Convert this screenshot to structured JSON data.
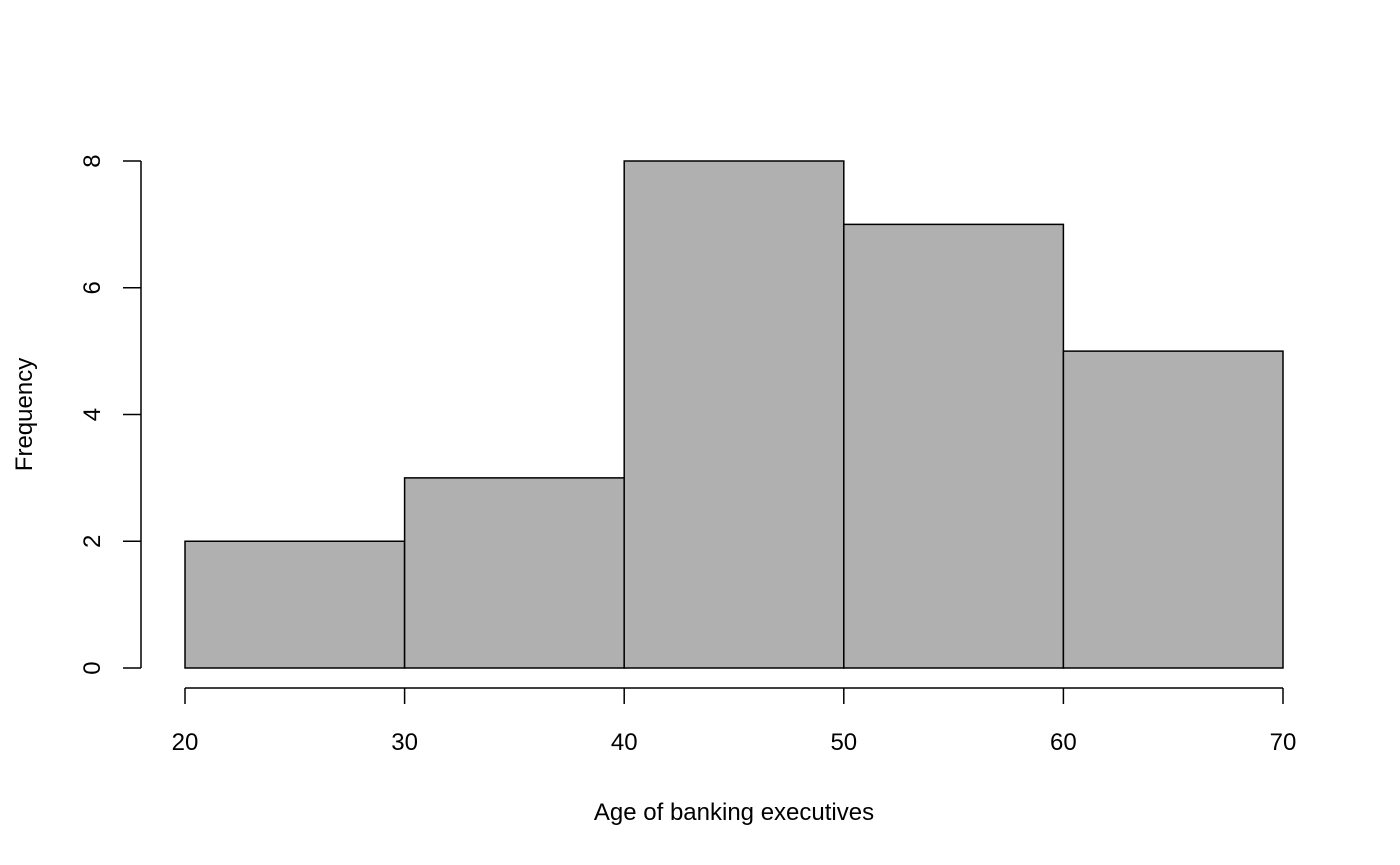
{
  "chart_data": {
    "type": "bar",
    "title": "",
    "xlabel": "Age of banking executives",
    "ylabel": "Frequency",
    "bins": [
      {
        "x0": 20,
        "x1": 30,
        "value": 2
      },
      {
        "x0": 30,
        "x1": 40,
        "value": 3
      },
      {
        "x0": 40,
        "x1": 50,
        "value": 8
      },
      {
        "x0": 50,
        "x1": 60,
        "value": 7
      },
      {
        "x0": 60,
        "x1": 70,
        "value": 5
      }
    ],
    "xlim": [
      20,
      70
    ],
    "ylim": [
      0,
      8
    ],
    "x_ticks": [
      "20",
      "30",
      "40",
      "50",
      "60",
      "70"
    ],
    "y_ticks": [
      "0",
      "2",
      "4",
      "6",
      "8"
    ],
    "bar_color": "#b0b0b0",
    "grid": false
  }
}
